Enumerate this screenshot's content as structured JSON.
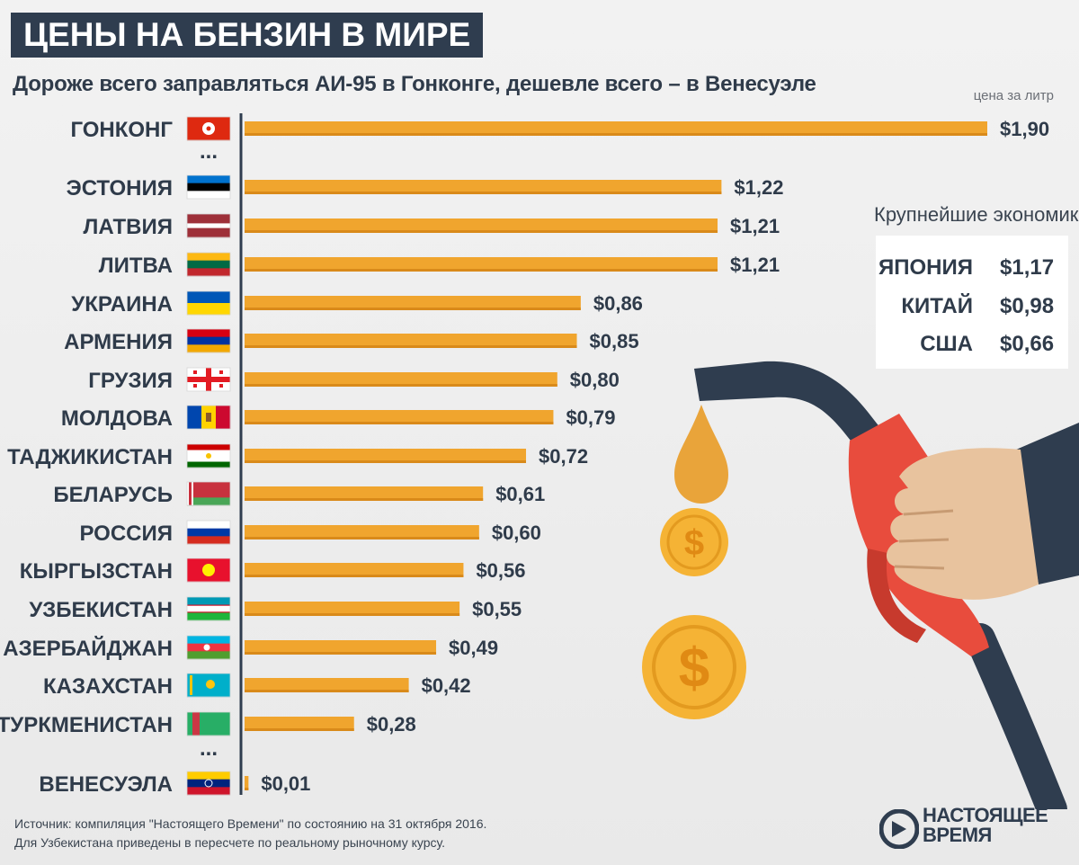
{
  "title": "ЦЕНЫ НА БЕНЗИН В МИРЕ",
  "subtitle": "Дороже всего заправляться АИ-95 в Гонконге, дешевле всего – в Венесуэле",
  "unit_label": "цена за литр",
  "chart_data": {
    "type": "bar",
    "orientation": "horizontal",
    "categories": [
      "ГОНКОНГ",
      "ЭСТОНИЯ",
      "ЛАТВИЯ",
      "ЛИТВА",
      "УКРАИНА",
      "АРМЕНИЯ",
      "ГРУЗИЯ",
      "МОЛДОВА",
      "ТАДЖИКИСТАН",
      "БЕЛАРУСЬ",
      "РОССИЯ",
      "КЫРГЫЗСТАН",
      "УЗБЕКИСТАН",
      "АЗЕРБАЙДЖАН",
      "КАЗАХСТАН",
      "ТУРКМЕНИСТАН",
      "ВЕНЕСУЭЛА"
    ],
    "values": [
      1.9,
      1.22,
      1.21,
      1.21,
      0.86,
      0.85,
      0.8,
      0.79,
      0.72,
      0.61,
      0.6,
      0.56,
      0.55,
      0.49,
      0.42,
      0.28,
      0.01
    ],
    "value_labels": [
      "$1,90",
      "$1,22",
      "$1,21",
      "$1,21",
      "$0,86",
      "$0,85",
      "$0,80",
      "$0,79",
      "$0,72",
      "$0,61",
      "$0,60",
      "$0,56",
      "$0,55",
      "$0,49",
      "$0,42",
      "$0,28",
      "$0,01"
    ],
    "gap_marker": "...",
    "xlim": [
      0,
      1.9
    ],
    "bar_color": "#f0a52e",
    "bar_shade_color": "#d98a1a",
    "axis_color": "#2f3d4f",
    "grid": false,
    "legend": "none"
  },
  "flags": [
    "hong-kong-flag-icon",
    "estonia-flag-icon",
    "latvia-flag-icon",
    "lithuania-flag-icon",
    "ukraine-flag-icon",
    "armenia-flag-icon",
    "georgia-flag-icon",
    "moldova-flag-icon",
    "tajikistan-flag-icon",
    "belarus-flag-icon",
    "russia-flag-icon",
    "kyrgyzstan-flag-icon",
    "uzbekistan-flag-icon",
    "azerbaijan-flag-icon",
    "kazakhstan-flag-icon",
    "turkmenistan-flag-icon",
    "venezuela-flag-icon"
  ],
  "economies": {
    "heading": "Крупнейшие экономики",
    "rows": [
      {
        "name": "ЯПОНИЯ",
        "value": "$1,17"
      },
      {
        "name": "КИТАЙ",
        "value": "$0,98"
      },
      {
        "name": "США",
        "value": "$0,66"
      }
    ]
  },
  "illustration": {
    "icons": [
      "fuel-nozzle-icon",
      "hand-icon",
      "fuel-drop-icon",
      "dollar-coin-icon"
    ],
    "coin_symbol": "$"
  },
  "source_lines": [
    "Источник: компиляция \"Настоящего Времени\" по состоянию на 31 октября 2016.",
    "Для Узбекистана приведены в пересчете по реальному рыночному курсу."
  ],
  "logo": {
    "line1": "НАСТОЯЩЕЕ",
    "line2": "ВРЕМЯ",
    "color": "#2f3d4f"
  },
  "colors": {
    "title_bg": "#2f3d4f",
    "text": "#2f3b4a",
    "nozzle_red": "#e84c3d",
    "hose": "#2f3d4f",
    "coin": "#f5b335"
  }
}
